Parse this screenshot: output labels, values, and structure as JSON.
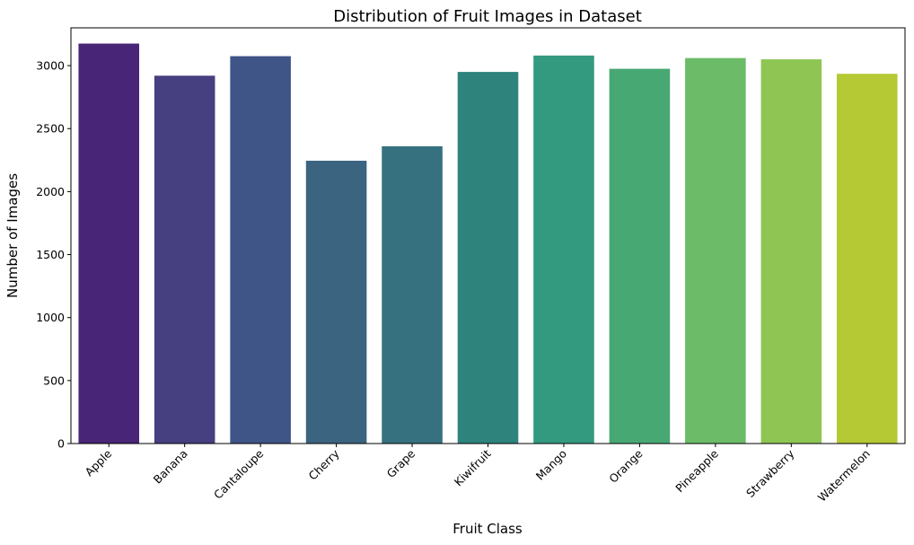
{
  "chart_data": {
    "type": "bar",
    "title": "Distribution of Fruit Images in Dataset",
    "xlabel": "Fruit Class",
    "ylabel": "Number of Images",
    "categories": [
      "Apple",
      "Banana",
      "Cantaloupe",
      "Cherry",
      "Grape",
      "Kiwifruit",
      "Mango",
      "Orange",
      "Pineapple",
      "Strawberry",
      "Watermelon"
    ],
    "values": [
      3175,
      2920,
      3075,
      2245,
      2360,
      2950,
      3080,
      2975,
      3060,
      3050,
      2935
    ],
    "colors": [
      "#482576",
      "#463f80",
      "#3f5487",
      "#3b6480",
      "#36717f",
      "#2e837c",
      "#349a7f",
      "#48a874",
      "#6bbb68",
      "#8ec553",
      "#b5c935"
    ],
    "ylim": [
      0,
      3300
    ],
    "yticks": [
      0,
      500,
      1000,
      1500,
      2000,
      2500,
      3000
    ],
    "grid": false,
    "legend": "none"
  }
}
